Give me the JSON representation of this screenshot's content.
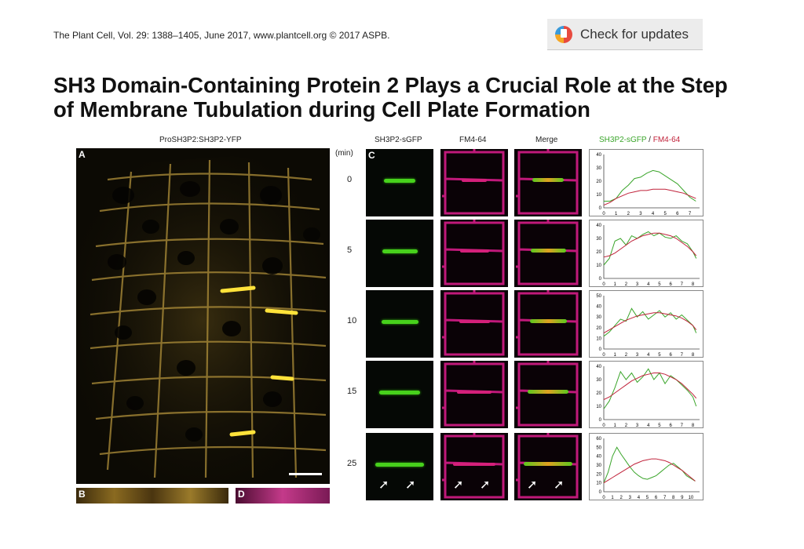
{
  "header": {
    "journal_line": "The Plant Cell, Vol. 29: 1388–1405, June 2017, www.plantcell.org © 2017 ASPB.",
    "updates_button": "Check for updates"
  },
  "title": "SH3 Domain-Containing Protein 2 Plays a Crucial Role at the Step of Membrane Tubulation during Cell Plate Formation",
  "figure": {
    "panel_a_caption": "ProSH3P2:SH3P2-YFP",
    "letters": {
      "a": "A",
      "b": "B",
      "c": "C",
      "d": "D"
    },
    "time_unit": "(min)",
    "col_labels": {
      "gfp": "SH3P2-sGFP",
      "fm": "FM4-64",
      "merge": "Merge"
    },
    "plot_legend": {
      "green": "SH3P2-sGFP",
      "sep": " / ",
      "red": "FM4-64"
    },
    "timepoints": [
      "0",
      "5",
      "10",
      "15",
      "25"
    ],
    "colors": {
      "green": "#3aa52a",
      "red": "#c0223a"
    }
  },
  "chart_data": [
    {
      "type": "line",
      "title": "",
      "x": [
        0,
        0.5,
        1,
        1.5,
        2,
        2.5,
        3,
        3.5,
        4,
        4.5,
        5,
        5.5,
        6,
        6.5,
        7,
        7.5
      ],
      "xticks": [
        0,
        1,
        2,
        3,
        4,
        5,
        6,
        7
      ],
      "yticks": [
        0,
        10,
        20,
        30,
        40
      ],
      "xlim": [
        0,
        7.8
      ],
      "ylim": [
        0,
        40
      ],
      "series": [
        {
          "name": "SH3P2-sGFP",
          "values": [
            5,
            5,
            7,
            13,
            17,
            22,
            23,
            26,
            28,
            27,
            24,
            21,
            18,
            13,
            8,
            5
          ]
        },
        {
          "name": "FM4-64",
          "values": [
            2,
            4,
            7,
            9,
            11,
            12,
            13,
            13,
            14,
            14,
            14,
            13,
            12,
            11,
            9,
            7
          ]
        }
      ]
    },
    {
      "type": "line",
      "title": "",
      "x": [
        0,
        0.5,
        1,
        1.5,
        2,
        2.5,
        3,
        3.5,
        4,
        4.5,
        5,
        5.5,
        6,
        6.5,
        7,
        7.5,
        8,
        8.3
      ],
      "xticks": [
        0,
        1,
        2,
        3,
        4,
        5,
        6,
        7,
        8
      ],
      "yticks": [
        0,
        10,
        20,
        30,
        40
      ],
      "xlim": [
        0,
        8.6
      ],
      "ylim": [
        0,
        40
      ],
      "series": [
        {
          "name": "SH3P2-sGFP",
          "values": [
            10,
            15,
            28,
            30,
            25,
            32,
            30,
            33,
            35,
            32,
            34,
            31,
            30,
            32,
            28,
            26,
            20,
            15
          ]
        },
        {
          "name": "FM4-64",
          "values": [
            16,
            17,
            19,
            22,
            25,
            28,
            30,
            32,
            33,
            34,
            34,
            33,
            32,
            30,
            27,
            24,
            20,
            17
          ]
        }
      ]
    },
    {
      "type": "line",
      "title": "",
      "x": [
        0,
        0.5,
        1,
        1.5,
        2,
        2.5,
        3,
        3.5,
        4,
        4.5,
        5,
        5.5,
        6,
        6.5,
        7,
        7.5,
        8,
        8.3
      ],
      "xticks": [
        0,
        1,
        2,
        3,
        4,
        5,
        6,
        7,
        8
      ],
      "yticks": [
        0,
        10,
        20,
        30,
        40,
        50
      ],
      "xlim": [
        0,
        8.6
      ],
      "ylim": [
        0,
        50
      ],
      "series": [
        {
          "name": "SH3P2-sGFP",
          "values": [
            12,
            16,
            22,
            28,
            26,
            38,
            30,
            35,
            28,
            32,
            36,
            30,
            34,
            28,
            32,
            27,
            22,
            15
          ]
        },
        {
          "name": "FM4-64",
          "values": [
            15,
            18,
            21,
            24,
            27,
            29,
            31,
            32,
            33,
            34,
            34,
            33,
            32,
            31,
            29,
            26,
            22,
            18
          ]
        }
      ]
    },
    {
      "type": "line",
      "title": "",
      "x": [
        0,
        0.5,
        1,
        1.5,
        2,
        2.5,
        3,
        3.5,
        4,
        4.5,
        5,
        5.5,
        6,
        6.5,
        7,
        7.5,
        8,
        8.3
      ],
      "xticks": [
        0,
        1,
        2,
        3,
        4,
        5,
        6,
        7,
        8
      ],
      "yticks": [
        0,
        10,
        20,
        30,
        40
      ],
      "xlim": [
        0,
        8.6
      ],
      "ylim": [
        0,
        40
      ],
      "series": [
        {
          "name": "SH3P2-sGFP",
          "values": [
            8,
            14,
            24,
            36,
            30,
            35,
            28,
            32,
            38,
            30,
            35,
            27,
            33,
            30,
            26,
            22,
            17,
            10
          ]
        },
        {
          "name": "FM4-64",
          "values": [
            15,
            17,
            20,
            23,
            26,
            29,
            31,
            33,
            34,
            35,
            35,
            34,
            32,
            30,
            27,
            23,
            19,
            16
          ]
        }
      ]
    },
    {
      "type": "line",
      "title": "",
      "x": [
        0,
        0.5,
        1,
        1.5,
        2,
        2.5,
        3,
        3.5,
        4,
        4.5,
        5,
        5.5,
        6,
        6.5,
        7,
        7.5,
        8,
        8.5,
        9,
        9.5,
        10,
        10.5
      ],
      "xticks": [
        0,
        1,
        2,
        3,
        4,
        5,
        6,
        7,
        8,
        9,
        10
      ],
      "yticks": [
        0,
        10,
        20,
        30,
        40,
        50,
        60
      ],
      "xlim": [
        0,
        11
      ],
      "ylim": [
        0,
        60
      ],
      "series": [
        {
          "name": "SH3P2-sGFP",
          "values": [
            10,
            22,
            40,
            50,
            42,
            35,
            28,
            22,
            18,
            15,
            14,
            16,
            18,
            22,
            26,
            30,
            32,
            28,
            24,
            18,
            15,
            12
          ]
        },
        {
          "name": "FM4-64",
          "values": [
            10,
            13,
            16,
            19,
            22,
            25,
            28,
            31,
            33,
            35,
            36,
            37,
            37,
            36,
            35,
            33,
            30,
            27,
            24,
            20,
            16,
            12
          ]
        }
      ]
    }
  ]
}
